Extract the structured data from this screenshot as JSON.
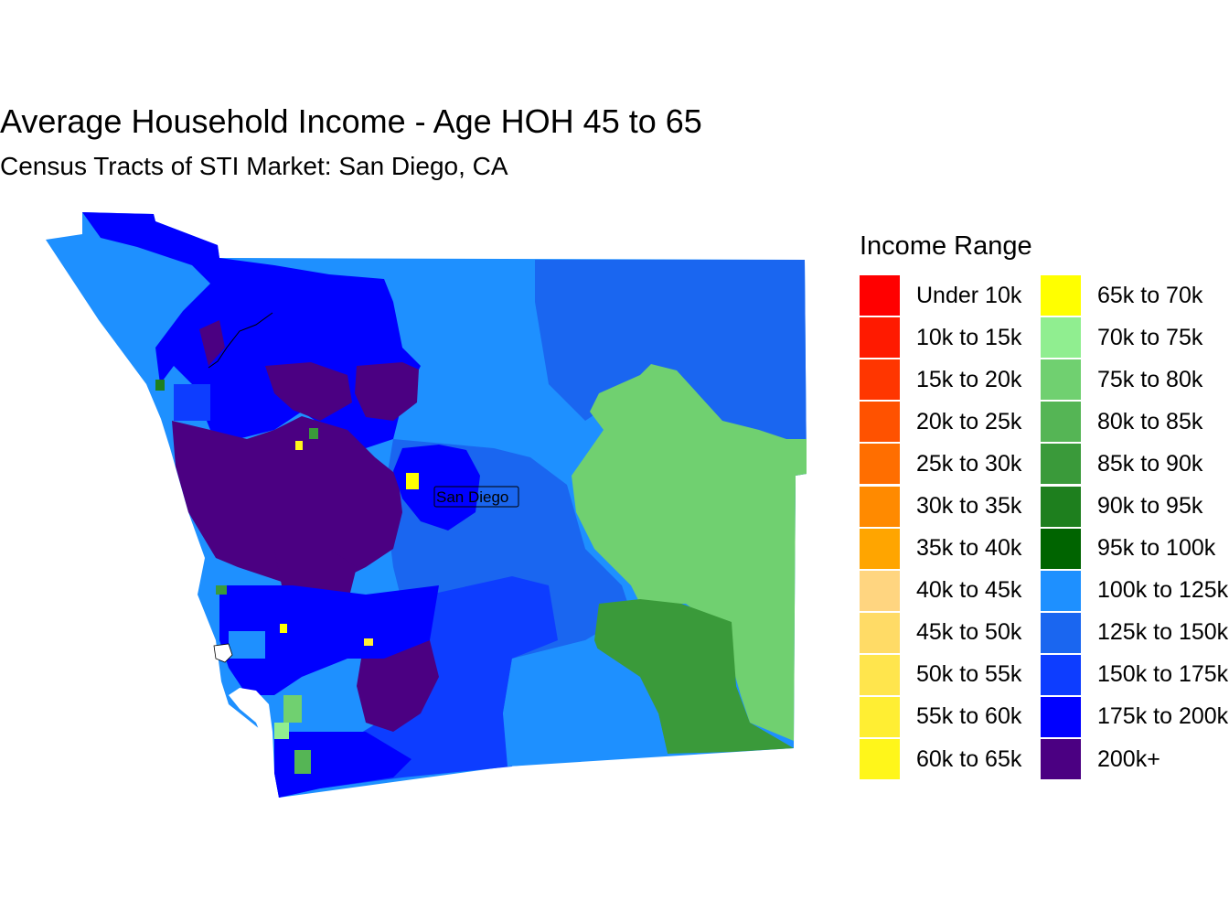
{
  "title": "Average Household Income - Age HOH 45 to 65",
  "subtitle": "Census Tracts of STI Market: San Diego, CA",
  "city_label": "San Diego",
  "legend": {
    "title": "Income Range",
    "items": [
      {
        "label": "Under 10k",
        "color": "#FF0000"
      },
      {
        "label": "10k to 15k",
        "color": "#FF1A00"
      },
      {
        "label": "15k to 20k",
        "color": "#FF3600"
      },
      {
        "label": "20k to 25k",
        "color": "#FF5200"
      },
      {
        "label": "25k to 30k",
        "color": "#FF6E00"
      },
      {
        "label": "30k to 35k",
        "color": "#FF8A00"
      },
      {
        "label": "35k to 40k",
        "color": "#FFA500"
      },
      {
        "label": "40k to 45k",
        "color": "#FFD580"
      },
      {
        "label": "45k to 50k",
        "color": "#FFDB66"
      },
      {
        "label": "50k to 55k",
        "color": "#FFE54D"
      },
      {
        "label": "55k to 60k",
        "color": "#FFEE33"
      },
      {
        "label": "60k to 65k",
        "color": "#FFF61A"
      },
      {
        "label": "65k to 70k",
        "color": "#FFFF00"
      },
      {
        "label": "70k to 75k",
        "color": "#90EE90"
      },
      {
        "label": "75k to 80k",
        "color": "#70D070"
      },
      {
        "label": "80k to 85k",
        "color": "#55B555"
      },
      {
        "label": "85k to 90k",
        "color": "#3A9A3A"
      },
      {
        "label": "90k to 95k",
        "color": "#1E7F1E"
      },
      {
        "label": "95k to 100k",
        "color": "#006400"
      },
      {
        "label": "100k to 125k",
        "color": "#1E90FF"
      },
      {
        "label": "125k to 150k",
        "color": "#1A66F0"
      },
      {
        "label": "150k to 175k",
        "color": "#0D3DFF"
      },
      {
        "label": "175k to 200k",
        "color": "#0000FF"
      },
      {
        "label": "200k+",
        "color": "#4B0082"
      }
    ]
  }
}
